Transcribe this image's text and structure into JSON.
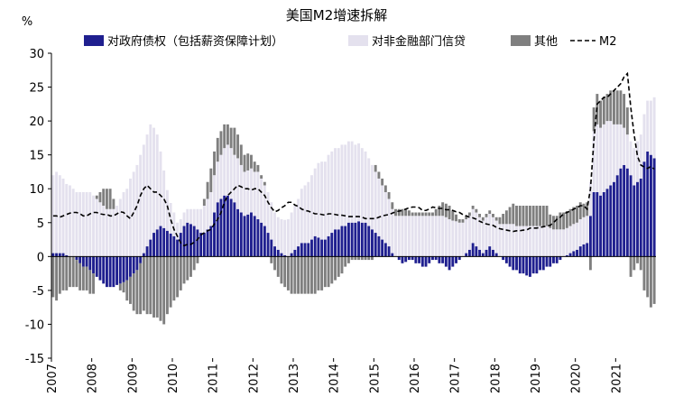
{
  "chart_data": {
    "type": "bar",
    "title": "美国M2增速拆解",
    "ylabel": "%",
    "ylim": [
      -15,
      30
    ],
    "yticks": [
      30,
      25,
      20,
      15,
      10,
      5,
      0,
      -5,
      -10,
      -15
    ],
    "grid": false,
    "legend_position": "top",
    "start": "2007-01",
    "frequency": "monthly",
    "years": [
      "2007",
      "2008",
      "2009",
      "2010",
      "2011",
      "2012",
      "2013",
      "2014",
      "2015",
      "2016",
      "2017",
      "2018",
      "2019",
      "2020",
      "2021"
    ],
    "series": [
      {
        "name": "对政府债权（包括薪资保障计划）",
        "type": "bar",
        "color": "#1f1f8f",
        "values": [
          0.5,
          0.5,
          0.5,
          0.5,
          0.2,
          0,
          0,
          -0.5,
          -1,
          -1.5,
          -1.5,
          -2,
          -2.5,
          -3,
          -3.5,
          -4,
          -4.5,
          -4.5,
          -4.5,
          -4.2,
          -4,
          -3.8,
          -3.5,
          -3,
          -2.5,
          -2,
          -1,
          0.5,
          1.5,
          2.5,
          3.5,
          4,
          4.5,
          4.2,
          3.8,
          3.4,
          3,
          2.5,
          3.5,
          4.5,
          5,
          4.8,
          4.5,
          4,
          3.5,
          3.5,
          4,
          4.5,
          6.5,
          8,
          8.5,
          9,
          9,
          8.5,
          8,
          7,
          6.5,
          6,
          6.2,
          6.5,
          6,
          5.5,
          5,
          4.5,
          3.5,
          2.5,
          1.5,
          1,
          0.5,
          0.2,
          0,
          0.5,
          1,
          1.5,
          2,
          2,
          2,
          2.5,
          3,
          2.8,
          2.5,
          2.5,
          3,
          3.5,
          4,
          4,
          4.5,
          4.5,
          5,
          5,
          5,
          5.2,
          5,
          5,
          4.5,
          4,
          3.5,
          3,
          2.5,
          2,
          1.5,
          0.5,
          0,
          -0.5,
          -1,
          -0.8,
          -0.5,
          -0.5,
          -1,
          -1,
          -1.5,
          -1.5,
          -1,
          -0.5,
          -0.5,
          -1,
          -1,
          -1.5,
          -2,
          -1.5,
          -1,
          -0.5,
          0,
          0.5,
          1,
          2,
          1.5,
          1,
          0.5,
          1,
          1.5,
          1,
          0.5,
          0,
          -0.5,
          -1,
          -1.5,
          -2,
          -2,
          -2.5,
          -2.5,
          -2.8,
          -3,
          -2.5,
          -2.5,
          -2,
          -2,
          -1.5,
          -1.5,
          -1,
          -1,
          -0.5,
          0,
          0.2,
          0.5,
          0.8,
          1,
          1.5,
          1.8,
          2,
          6,
          9.5,
          9.5,
          9,
          9.5,
          10,
          10.5,
          11,
          12,
          13,
          13.5,
          13,
          12,
          10.5,
          11,
          11.5,
          14,
          15.5,
          15,
          14.5
        ]
      },
      {
        "name": "对非金融部门信贷",
        "type": "bar",
        "color": "#e4e1ee",
        "values": [
          11.5,
          12,
          11.5,
          11,
          10.5,
          10.5,
          10,
          9.5,
          9.5,
          9.5,
          9.5,
          9.5,
          9,
          8.5,
          8,
          7.5,
          7,
          7,
          7,
          7.5,
          8.5,
          9.5,
          10,
          11.5,
          12.5,
          13.5,
          15,
          16,
          16.5,
          17,
          15.5,
          14,
          11,
          8.5,
          6,
          4.5,
          3.5,
          2.5,
          2,
          2,
          2,
          2.2,
          2.5,
          3,
          3.5,
          4,
          4.5,
          5,
          5.5,
          6,
          6.5,
          7,
          7.5,
          7.5,
          7,
          7.5,
          7,
          6.5,
          6.5,
          6.5,
          6.5,
          7,
          6.5,
          6,
          6,
          5.5,
          5,
          4.8,
          5,
          5.2,
          5.5,
          6,
          6.5,
          7,
          8,
          8.5,
          9,
          9.5,
          10,
          11,
          11.5,
          11.5,
          12,
          12,
          12,
          12,
          12,
          12,
          12,
          12,
          11.5,
          11.5,
          11,
          10.5,
          10,
          9.5,
          9,
          8.5,
          8,
          7.5,
          7,
          6.5,
          6,
          6,
          6,
          6,
          6,
          6,
          6,
          6,
          6,
          6,
          6,
          6,
          6,
          6,
          6,
          5.8,
          5.5,
          5.3,
          5.2,
          5,
          5,
          5,
          5,
          5,
          5,
          4.8,
          4.8,
          4.8,
          4.8,
          4.8,
          4.8,
          4.8,
          4.8,
          4.8,
          4.8,
          4.8,
          4.5,
          4.5,
          4.5,
          4.5,
          4.5,
          4.5,
          4.5,
          4.5,
          4.5,
          4.5,
          4.2,
          4,
          4,
          4,
          4,
          4,
          4,
          4,
          4,
          4,
          4,
          4,
          5,
          9,
          10,
          10,
          10,
          10,
          9.5,
          8.5,
          7.5,
          6.5,
          5.5,
          5,
          5,
          5.5,
          6,
          6.5,
          7,
          7.5,
          8,
          9
        ]
      },
      {
        "name": "其他",
        "type": "bar",
        "color": "#7f7f7f",
        "values": [
          -6,
          -6.5,
          -5.5,
          -5,
          -5,
          -4.5,
          -4.5,
          -4,
          -4,
          -3.5,
          -3.5,
          -3.5,
          -3,
          0.5,
          1.5,
          2.5,
          3,
          3,
          1.5,
          0,
          -1,
          -1.5,
          -3,
          -4,
          -5.5,
          -6.5,
          -7.5,
          -8,
          -8.5,
          -8.5,
          -9,
          -9,
          -9.5,
          -10,
          -8.5,
          -7.5,
          -6.5,
          -6,
          -5,
          -4,
          -3.5,
          -3,
          -2,
          -1,
          0,
          1,
          2.5,
          3.5,
          3.5,
          3.5,
          3.5,
          3.5,
          3,
          3,
          4,
          3.5,
          3,
          2.5,
          2.5,
          2,
          1.5,
          1,
          0.5,
          0.5,
          0,
          -1,
          -2,
          -3,
          -4,
          -4.5,
          -5,
          -5.5,
          -5.5,
          -5.5,
          -5.5,
          -5.5,
          -5.5,
          -5.5,
          -5.5,
          -5,
          -5,
          -4.5,
          -4.5,
          -4,
          -3.5,
          -3,
          -2.5,
          -1.5,
          -1,
          -0.5,
          -0.5,
          -0.5,
          -0.5,
          -0.5,
          -0.5,
          -0.5,
          1,
          1,
          1,
          1,
          1,
          1,
          1,
          1,
          1,
          1,
          0.8,
          0.5,
          0.5,
          0.5,
          0.5,
          0.5,
          0.5,
          0.5,
          1,
          1.5,
          2,
          2,
          2,
          1.5,
          1,
          0.5,
          0.5,
          0.5,
          0.5,
          0.5,
          0.5,
          0.5,
          0.5,
          0.5,
          0.5,
          0.5,
          0.5,
          1,
          1.5,
          2,
          2.5,
          3,
          3,
          3,
          3,
          3,
          3,
          3,
          3,
          3,
          3,
          3,
          2,
          2,
          2,
          2.5,
          2.5,
          2.5,
          2.5,
          2.5,
          2.5,
          2.5,
          2,
          2,
          -2,
          3.5,
          4.5,
          4,
          4,
          4,
          4.5,
          5,
          5,
          5,
          5,
          4,
          -3,
          -2,
          -1,
          -2,
          -5,
          -6,
          -7.5,
          -7
        ]
      },
      {
        "name": "M2",
        "type": "line",
        "dash": true,
        "color": "#000000",
        "values": [
          6,
          6,
          5.8,
          6,
          6.2,
          6.4,
          6.5,
          6.5,
          6.3,
          6,
          6,
          6.3,
          6.5,
          6.5,
          6.3,
          6.2,
          6.2,
          6,
          6,
          6.3,
          6.6,
          6.5,
          6,
          5.6,
          6.5,
          7.5,
          9,
          10,
          10.5,
          10,
          9.5,
          9.5,
          9,
          8.5,
          7.5,
          5.5,
          4,
          3,
          2,
          1.6,
          1.8,
          1.8,
          2.1,
          2.5,
          3.2,
          3.5,
          3.8,
          4,
          4.8,
          5.5,
          6.5,
          8,
          9,
          9.5,
          10,
          10.5,
          10.3,
          10,
          10,
          9.8,
          10,
          10,
          9.5,
          9,
          8,
          7.2,
          6.6,
          6.8,
          7.2,
          7.5,
          8,
          8,
          7.6,
          7.4,
          7,
          6.8,
          6.7,
          6.5,
          6.3,
          6.3,
          6.2,
          6.1,
          6.3,
          6.3,
          6.2,
          6.1,
          6.1,
          6,
          5.9,
          5.9,
          5.9,
          5.9,
          5.8,
          5.6,
          5.6,
          5.6,
          5.6,
          5.8,
          6,
          6.1,
          6.2,
          6.4,
          6.6,
          6.7,
          6.8,
          7,
          7.2,
          7.3,
          7.3,
          7.2,
          6.8,
          6.8,
          7,
          7.3,
          7.2,
          7.1,
          7.1,
          6.9,
          6.9,
          6.8,
          6.6,
          6.5,
          6.2,
          6,
          5.8,
          5.7,
          5.5,
          5.2,
          5,
          4.8,
          4.7,
          4.6,
          4.3,
          4.1,
          4,
          3.9,
          3.8,
          3.7,
          3.8,
          3.8,
          3.9,
          3.9,
          4.2,
          4.2,
          4.2,
          4.3,
          4.4,
          4.5,
          4.6,
          5,
          5.5,
          5.8,
          6.3,
          6.5,
          6.7,
          7,
          7.2,
          7.5,
          7.5,
          7,
          10,
          17,
          22.5,
          23,
          23.5,
          23.5,
          24,
          24.5,
          25,
          25.5,
          26.5,
          27,
          22,
          18,
          14.8,
          13.5,
          13.2,
          13,
          13.3,
          12.9
        ]
      }
    ]
  }
}
